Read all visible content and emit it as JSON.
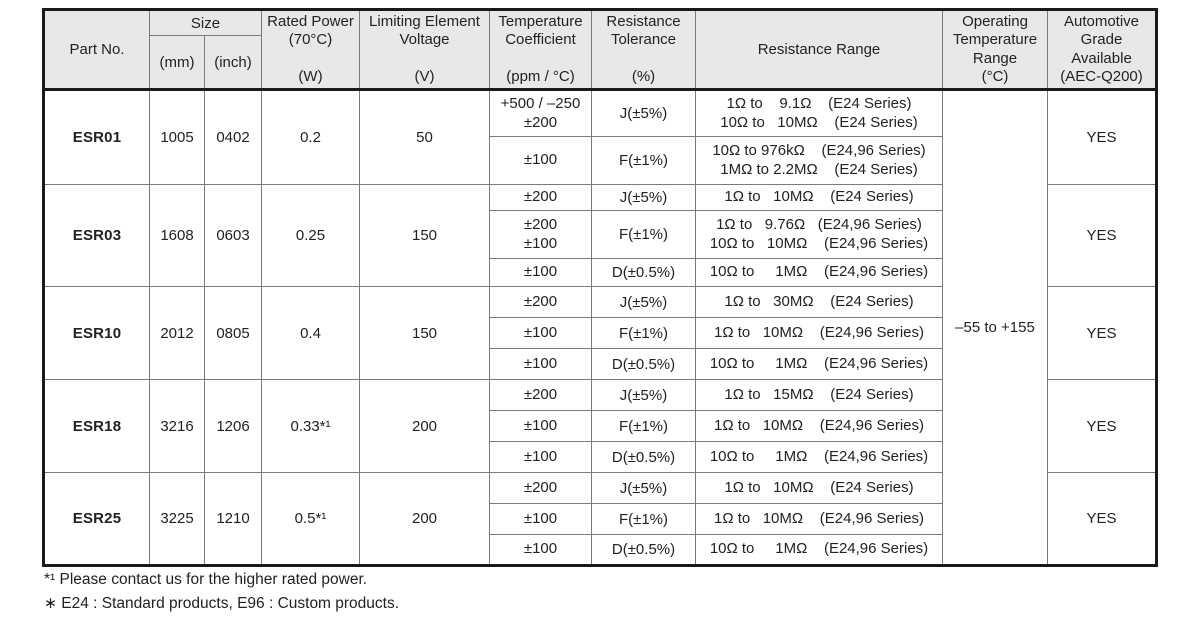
{
  "header": {
    "part_no": "Part No.",
    "size": "Size",
    "size_mm": "(mm)",
    "size_inch": "(inch)",
    "rated_power": "Rated Power\n(70°C)\n\n(W)",
    "voltage": "Limiting Element\nVoltage\n\n(V)",
    "tempco": "Temperature\nCoefficient\n\n(ppm / °C)",
    "tolerance": "Resistance\nTolerance\n\n(%)",
    "range": "Resistance Range",
    "op_temp": "Operating\nTemperature\nRange\n(°C)",
    "auto_grade": "Automotive\nGrade\nAvailable\n(AEC-Q200)"
  },
  "operating_temp_range": "–55 to +155",
  "groups": [
    {
      "part_no": "ESR01",
      "size_mm": "1005",
      "size_inch": "0402",
      "rated_power": "0.2",
      "voltage": "50",
      "auto_grade": "YES",
      "rows": [
        {
          "tempco": "+500 / –250\n±200",
          "tolerance": "J(±5%)",
          "range": "1Ω to    9.1Ω    (E24 Series)\n10Ω to   10MΩ    (E24 Series)"
        },
        {
          "tempco": "±100",
          "tolerance": "F(±1%)",
          "range": "10Ω to 976kΩ    (E24,96 Series)\n1MΩ to 2.2MΩ    (E24 Series)"
        }
      ]
    },
    {
      "part_no": "ESR03",
      "size_mm": "1608",
      "size_inch": "0603",
      "rated_power": "0.25",
      "voltage": "150",
      "auto_grade": "YES",
      "rows": [
        {
          "tempco": "±200",
          "tolerance": "J(±5%)",
          "range": "1Ω to   10MΩ    (E24 Series)"
        },
        {
          "tempco": "±200\n±100",
          "tolerance": "F(±1%)",
          "range": "1Ω to   9.76Ω   (E24,96 Series)\n10Ω to   10MΩ    (E24,96 Series)"
        },
        {
          "tempco": "±100",
          "tolerance": "D(±0.5%)",
          "range": "10Ω to     1MΩ    (E24,96 Series)"
        }
      ]
    },
    {
      "part_no": "ESR10",
      "size_mm": "2012",
      "size_inch": "0805",
      "rated_power": "0.4",
      "voltage": "150",
      "auto_grade": "YES",
      "rows": [
        {
          "tempco": "±200",
          "tolerance": "J(±5%)",
          "range": "1Ω to   30MΩ    (E24 Series)"
        },
        {
          "tempco": "±100",
          "tolerance": "F(±1%)",
          "range": "1Ω to   10MΩ    (E24,96 Series)"
        },
        {
          "tempco": "±100",
          "tolerance": "D(±0.5%)",
          "range": "10Ω to     1MΩ    (E24,96 Series)"
        }
      ]
    },
    {
      "part_no": "ESR18",
      "size_mm": "3216",
      "size_inch": "1206",
      "rated_power": "0.33*¹",
      "voltage": "200",
      "auto_grade": "YES",
      "rows": [
        {
          "tempco": "±200",
          "tolerance": "J(±5%)",
          "range": "1Ω to   15MΩ    (E24 Series)"
        },
        {
          "tempco": "±100",
          "tolerance": "F(±1%)",
          "range": "1Ω to   10MΩ    (E24,96 Series)"
        },
        {
          "tempco": "±100",
          "tolerance": "D(±0.5%)",
          "range": "10Ω to     1MΩ    (E24,96 Series)"
        }
      ]
    },
    {
      "part_no": "ESR25",
      "size_mm": "3225",
      "size_inch": "1210",
      "rated_power": "0.5*¹",
      "voltage": "200",
      "auto_grade": "YES",
      "rows": [
        {
          "tempco": "±200",
          "tolerance": "J(±5%)",
          "range": "1Ω to   10MΩ    (E24 Series)"
        },
        {
          "tempco": "±100",
          "tolerance": "F(±1%)",
          "range": "1Ω to   10MΩ    (E24,96 Series)"
        },
        {
          "tempco": "±100",
          "tolerance": "D(±0.5%)",
          "range": "10Ω to     1MΩ    (E24,96 Series)"
        }
      ]
    }
  ],
  "footnotes": {
    "note1": "*¹ Please contact us for the higher rated power.",
    "note2": "∗ E24 : Standard products, E96 : Custom products."
  },
  "colors": {
    "header_bg": "#e8e8e8",
    "border_thick": "#1a1a1a",
    "border_thin": "#7a7a7a",
    "text": "#222222"
  }
}
